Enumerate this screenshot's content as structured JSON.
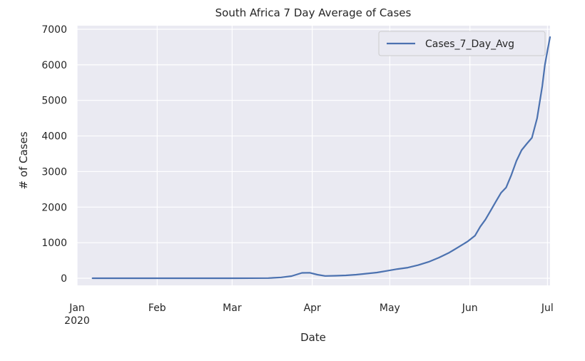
{
  "chart_data": {
    "type": "line",
    "title": "South Africa 7 Day Average of Cases",
    "xlabel": "Date",
    "ylabel": "# of Cases",
    "xlim": [
      "2020-01-01",
      "2020-07-02"
    ],
    "ylim": [
      -200,
      7100
    ],
    "grid": true,
    "legend_position": "top-right",
    "colors": {
      "background": "#eaeaf2",
      "grid": "#ffffff",
      "line": "#4c72b0"
    },
    "x_ticks": [
      {
        "date": "2020-01-01",
        "label": "Jan",
        "sublabel": "2020"
      },
      {
        "date": "2020-02-01",
        "label": "Feb"
      },
      {
        "date": "2020-03-01",
        "label": "Mar"
      },
      {
        "date": "2020-04-01",
        "label": "Apr"
      },
      {
        "date": "2020-05-01",
        "label": "May"
      },
      {
        "date": "2020-06-01",
        "label": "Jun"
      },
      {
        "date": "2020-07-01",
        "label": "Jul"
      }
    ],
    "y_ticks": [
      0,
      1000,
      2000,
      3000,
      4000,
      5000,
      6000,
      7000
    ],
    "series": [
      {
        "name": "Cases_7_Day_Avg",
        "points": [
          [
            "2020-01-07",
            0
          ],
          [
            "2020-02-01",
            0
          ],
          [
            "2020-03-01",
            0
          ],
          [
            "2020-03-15",
            5
          ],
          [
            "2020-03-20",
            25
          ],
          [
            "2020-03-24",
            60
          ],
          [
            "2020-03-28",
            150
          ],
          [
            "2020-03-31",
            155
          ],
          [
            "2020-04-03",
            100
          ],
          [
            "2020-04-06",
            65
          ],
          [
            "2020-04-10",
            70
          ],
          [
            "2020-04-14",
            80
          ],
          [
            "2020-04-18",
            100
          ],
          [
            "2020-04-22",
            130
          ],
          [
            "2020-04-26",
            160
          ],
          [
            "2020-04-30",
            210
          ],
          [
            "2020-05-04",
            260
          ],
          [
            "2020-05-08",
            300
          ],
          [
            "2020-05-12",
            370
          ],
          [
            "2020-05-16",
            460
          ],
          [
            "2020-05-20",
            580
          ],
          [
            "2020-05-24",
            720
          ],
          [
            "2020-05-27",
            850
          ],
          [
            "2020-05-31",
            1030
          ],
          [
            "2020-06-03",
            1200
          ],
          [
            "2020-06-05",
            1450
          ],
          [
            "2020-06-07",
            1650
          ],
          [
            "2020-06-09",
            1900
          ],
          [
            "2020-06-11",
            2150
          ],
          [
            "2020-06-13",
            2400
          ],
          [
            "2020-06-15",
            2550
          ],
          [
            "2020-06-17",
            2900
          ],
          [
            "2020-06-19",
            3300
          ],
          [
            "2020-06-21",
            3600
          ],
          [
            "2020-06-23",
            3780
          ],
          [
            "2020-06-25",
            3950
          ],
          [
            "2020-06-27",
            4500
          ],
          [
            "2020-06-29",
            5400
          ],
          [
            "2020-06-30",
            6000
          ],
          [
            "2020-07-01",
            6400
          ],
          [
            "2020-07-02",
            6780
          ]
        ]
      }
    ]
  }
}
